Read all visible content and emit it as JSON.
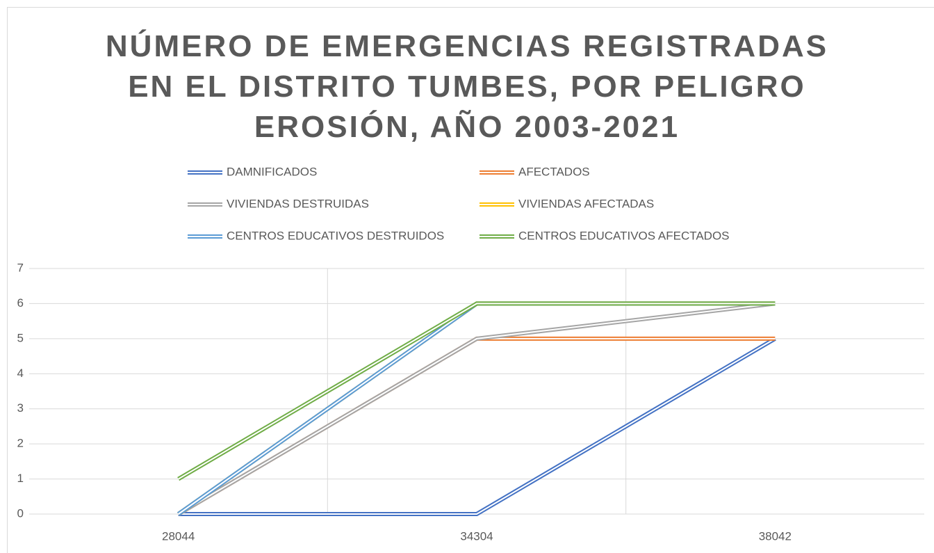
{
  "chart_data": {
    "type": "line",
    "title": "NÚMERO DE EMERGENCIAS REGISTRADAS EN EL DISTRITO TUMBES, POR PELIGRO EROSIÓN, AÑO 2003-2021",
    "categories": [
      "28044",
      "34304",
      "38042"
    ],
    "series": [
      {
        "name": "DAMNIFICADOS",
        "color": "#4472c4",
        "values": [
          0,
          0,
          5
        ]
      },
      {
        "name": "AFECTADOS",
        "color": "#ed7d31",
        "values": [
          0,
          5,
          5
        ]
      },
      {
        "name": "VIVIENDAS DESTRUIDAS",
        "color": "#a5a5a5",
        "values": [
          0,
          5,
          6
        ]
      },
      {
        "name": "VIVIENDAS AFECTADAS",
        "color": "#ffc000",
        "values": [
          0,
          6,
          6
        ]
      },
      {
        "name": "CENTROS EDUCATIVOS DESTRUIDOS",
        "color": "#5b9bd5",
        "values": [
          0,
          6,
          6
        ]
      },
      {
        "name": "CENTROS EDUCATIVOS AFECTADOS",
        "color": "#70ad47",
        "values": [
          1,
          6,
          6
        ]
      }
    ],
    "ylim": [
      0,
      7
    ],
    "yticks": [
      0,
      1,
      2,
      3,
      4,
      5,
      6,
      7
    ],
    "grid": true
  }
}
